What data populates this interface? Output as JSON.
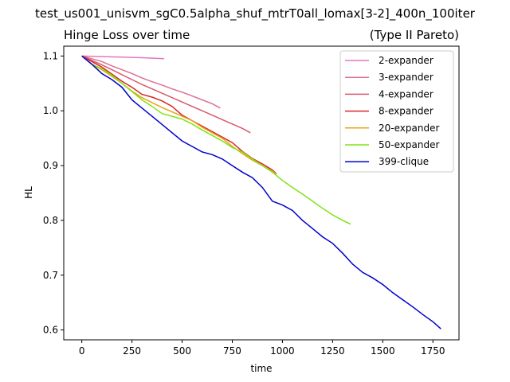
{
  "figure": {
    "title": "test_us001_unisvm_sgC0.5alpha_shuf_mtrT0all_lomax[3-2]_400n_100iter",
    "subtitle_left": "Hinge Loss over time",
    "subtitle_right": "(Type II Pareto)"
  },
  "chart_data": {
    "type": "line",
    "title": "Hinge Loss over time",
    "xlabel": "time",
    "ylabel": "HL",
    "xlim": [
      -90,
      1880
    ],
    "ylim": [
      0.582,
      1.118
    ],
    "xticks": [
      0,
      250,
      500,
      750,
      1000,
      1250,
      1500,
      1750
    ],
    "yticks": [
      0.6,
      0.7,
      0.8,
      0.9,
      1.0,
      1.1
    ],
    "xtick_labels": [
      "0",
      "250",
      "500",
      "750",
      "1000",
      "1250",
      "1500",
      "1750"
    ],
    "ytick_labels": [
      "0.6",
      "0.7",
      "0.8",
      "0.9",
      "1.0",
      "1.1"
    ],
    "grid": false,
    "legend_position": "top-right",
    "series": [
      {
        "name": "2-expander",
        "color": "#e377c2",
        "x": [
          0,
          100,
          200,
          300,
          410
        ],
        "y": [
          1.1,
          1.099,
          1.098,
          1.097,
          1.095
        ]
      },
      {
        "name": "3-expander",
        "color": "#dd6f95",
        "x": [
          0,
          50,
          100,
          150,
          200,
          250,
          300,
          350,
          400,
          450,
          500,
          550,
          600,
          650,
          690
        ],
        "y": [
          1.1,
          1.095,
          1.09,
          1.082,
          1.075,
          1.068,
          1.06,
          1.053,
          1.047,
          1.04,
          1.034,
          1.027,
          1.02,
          1.013,
          1.005
        ]
      },
      {
        "name": "4-expander",
        "color": "#d9596b",
        "x": [
          0,
          50,
          100,
          150,
          200,
          250,
          300,
          350,
          400,
          450,
          500,
          550,
          600,
          650,
          700,
          750,
          800,
          840
        ],
        "y": [
          1.1,
          1.092,
          1.084,
          1.075,
          1.066,
          1.057,
          1.048,
          1.04,
          1.032,
          1.024,
          1.016,
          1.008,
          1.0,
          0.992,
          0.984,
          0.976,
          0.968,
          0.96
        ]
      },
      {
        "name": "8-expander",
        "color": "#d62728",
        "x": [
          0,
          50,
          100,
          150,
          200,
          250,
          300,
          350,
          400,
          450,
          500,
          550,
          600,
          650,
          700,
          750,
          800,
          850,
          900,
          950,
          970
        ],
        "y": [
          1.1,
          1.09,
          1.08,
          1.067,
          1.054,
          1.043,
          1.03,
          1.025,
          1.018,
          1.008,
          0.992,
          0.982,
          0.972,
          0.962,
          0.952,
          0.942,
          0.926,
          0.913,
          0.903,
          0.892,
          0.885
        ]
      },
      {
        "name": "20-expander",
        "color": "#e8a317",
        "x": [
          0,
          50,
          100,
          150,
          200,
          250,
          300,
          350,
          400,
          450,
          500,
          550,
          600,
          650,
          700,
          750,
          800,
          850,
          900,
          950,
          970
        ],
        "y": [
          1.1,
          1.085,
          1.075,
          1.063,
          1.05,
          1.036,
          1.024,
          1.015,
          1.006,
          0.998,
          0.99,
          0.982,
          0.97,
          0.96,
          0.95,
          0.935,
          0.922,
          0.91,
          0.9,
          0.89,
          0.884
        ]
      },
      {
        "name": "50-expander",
        "color": "#7fe315",
        "x": [
          0,
          50,
          100,
          150,
          200,
          250,
          300,
          350,
          400,
          450,
          500,
          550,
          600,
          650,
          700,
          750,
          800,
          850,
          900,
          950,
          1000,
          1050,
          1100,
          1150,
          1200,
          1250,
          1300,
          1340
        ],
        "y": [
          1.1,
          1.085,
          1.077,
          1.065,
          1.05,
          1.035,
          1.02,
          1.008,
          0.995,
          0.99,
          0.985,
          0.976,
          0.965,
          0.955,
          0.945,
          0.933,
          0.925,
          0.912,
          0.9,
          0.888,
          0.873,
          0.86,
          0.848,
          0.835,
          0.822,
          0.81,
          0.8,
          0.793
        ]
      },
      {
        "name": "399-clique",
        "color": "#0000cd",
        "x": [
          0,
          50,
          100,
          150,
          200,
          250,
          300,
          350,
          400,
          450,
          500,
          550,
          600,
          650,
          700,
          750,
          800,
          850,
          900,
          950,
          1000,
          1050,
          1100,
          1150,
          1200,
          1250,
          1300,
          1350,
          1400,
          1450,
          1500,
          1550,
          1600,
          1650,
          1700,
          1750,
          1790
        ],
        "y": [
          1.1,
          1.085,
          1.068,
          1.057,
          1.043,
          1.02,
          1.005,
          0.99,
          0.975,
          0.96,
          0.945,
          0.935,
          0.925,
          0.92,
          0.912,
          0.9,
          0.888,
          0.878,
          0.86,
          0.835,
          0.828,
          0.818,
          0.8,
          0.785,
          0.77,
          0.758,
          0.74,
          0.72,
          0.705,
          0.695,
          0.683,
          0.668,
          0.655,
          0.642,
          0.628,
          0.615,
          0.602
        ]
      }
    ]
  }
}
